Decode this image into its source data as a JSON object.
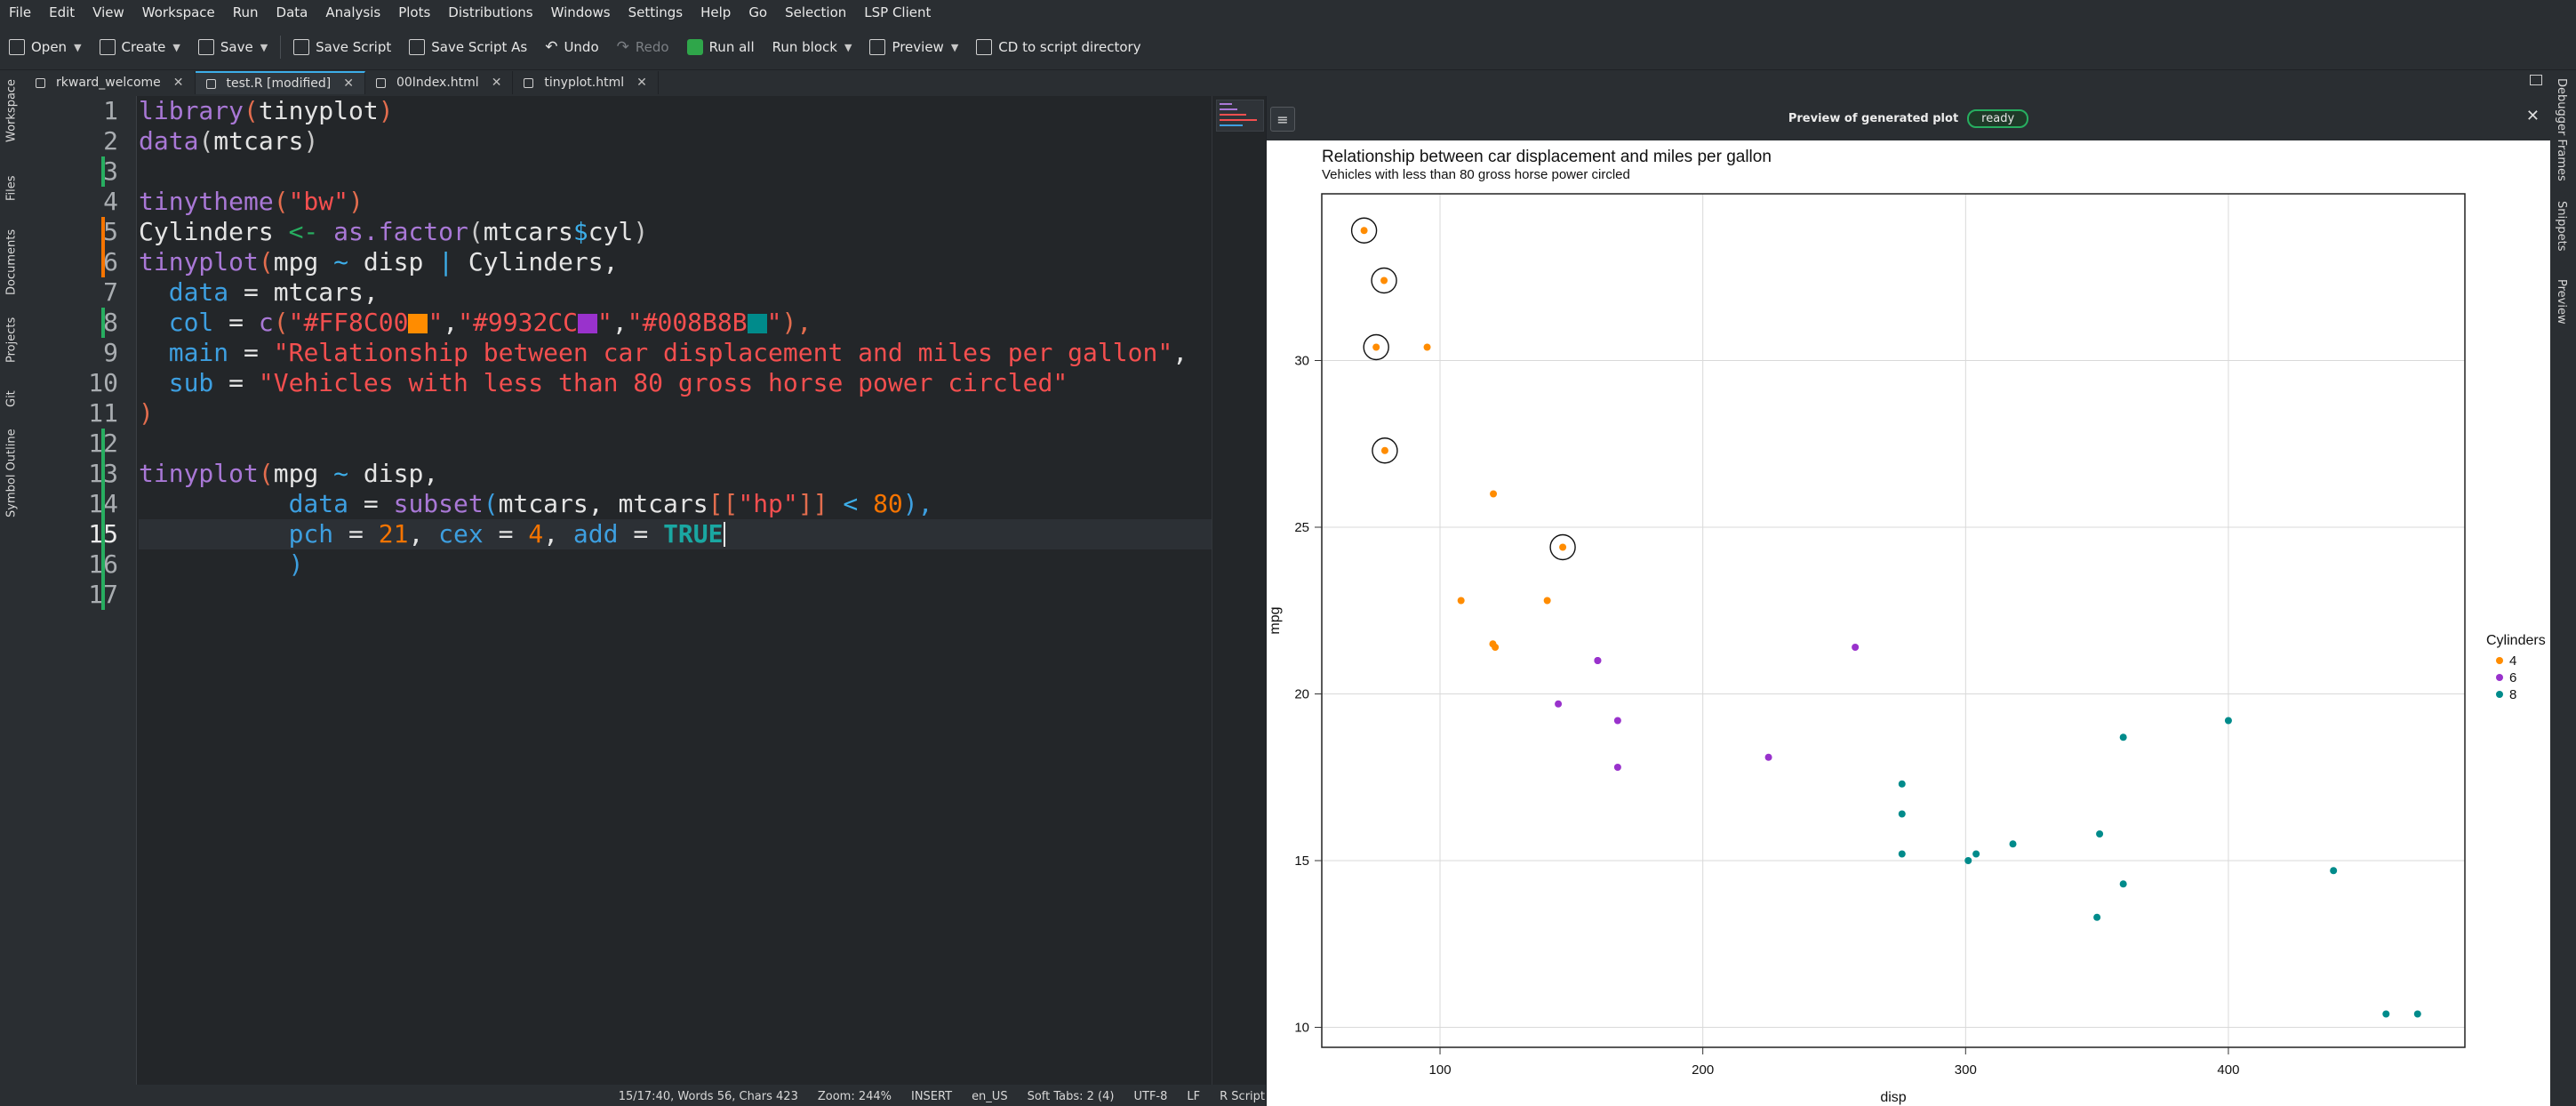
{
  "menubar": [
    "File",
    "Edit",
    "View",
    "Workspace",
    "Run",
    "Data",
    "Analysis",
    "Plots",
    "Distributions",
    "Windows",
    "Settings",
    "Help",
    "Go",
    "Selection",
    "LSP Client"
  ],
  "toolbar": {
    "open": "Open",
    "create": "Create",
    "save": "Save",
    "save_script": "Save Script",
    "save_script_as": "Save Script As",
    "undo": "Undo",
    "redo": "Redo",
    "run_all": "Run all",
    "run_block": "Run block",
    "preview": "Preview",
    "cd": "CD to script directory"
  },
  "tabs": [
    {
      "label": "rkward_welcome",
      "active": false
    },
    {
      "label": "test.R [modified]",
      "active": true
    },
    {
      "label": "00Index.html",
      "active": false
    },
    {
      "label": "tinyplot.html",
      "active": false
    }
  ],
  "left_panels": [
    "Workspace",
    "Files",
    "Documents",
    "Projects",
    "Git",
    "Symbol Outline"
  ],
  "right_panels": [
    "Debugger Frames",
    "Snippets",
    "Preview"
  ],
  "editor": {
    "current_line": 15,
    "lines": [
      "1",
      "2",
      "3",
      "4",
      "5",
      "6",
      "7",
      "8",
      "9",
      "10",
      "11",
      "12",
      "13",
      "14",
      "15",
      "16",
      "17"
    ],
    "code": {
      "l1": {
        "fn": "library",
        "p1": "(",
        "arg": "tinyplot",
        "p2": ")"
      },
      "l2": {
        "fn": "data",
        "p1": "(",
        "arg": "mtcars",
        "p2": ")"
      },
      "l4": {
        "fn": "tinytheme",
        "p1": "(",
        "str": "\"bw\"",
        "p2": ")"
      },
      "l5": {
        "var": "Cylinders ",
        "op": "<-",
        "sp": " ",
        "fn": "as.factor",
        "p1": "(",
        "arg": "mtcars",
        "op2": "$",
        "arg2": "cyl",
        "p2": ")"
      },
      "l6": {
        "fn": "tinyplot",
        "p1": "(",
        "a": "mpg ",
        "op": "~",
        "b": " disp ",
        "op2": "|",
        "c": " Cylinders,"
      },
      "l7": {
        "indent": "  ",
        "name": "data",
        "eq": " = ",
        "val": "mtcars,"
      },
      "l8": {
        "indent": "  ",
        "name": "col",
        "eq": " = ",
        "fn": "c",
        "p1": "(",
        "s1": "\"#FF8C00",
        "s1e": "\"",
        "c1": ",",
        "s2": "\"#9932CC",
        "s2e": "\"",
        "c2": ",",
        "s3": "\"#008B8B",
        "s3e": "\"",
        "p2": "),"
      },
      "l9": {
        "indent": "  ",
        "name": "main",
        "eq": " = ",
        "str": "\"Relationship between car displacement and miles per gallon\"",
        "tail": ","
      },
      "l10": {
        "indent": "  ",
        "name": "sub",
        "eq": " = ",
        "str": "\"Vehicles with less than 80 gross horse power circled\""
      },
      "l11": {
        "p": ")"
      },
      "l13": {
        "fn": "tinyplot",
        "p1": "(",
        "a": "mpg ",
        "op": "~",
        "b": " disp,"
      },
      "l14": {
        "indent": "          ",
        "name": "data",
        "eq": " = ",
        "fn": "subset",
        "p1": "(",
        "a": "mtcars, mtcars",
        "b1": "[[",
        "str": "\"hp\"",
        "b2": "]]",
        "op": " < ",
        "num": "80",
        "p2": "),"
      },
      "l15": {
        "indent": "          ",
        "n1": "pch",
        "eq1": " = ",
        "v1": "21",
        "c1": ", ",
        "n2": "cex",
        "eq2": " = ",
        "v2": "4",
        "c2": ", ",
        "n3": "add",
        "eq3": " = ",
        "v3": "TRUE"
      },
      "l16": {
        "indent": "          ",
        "p": ")"
      }
    }
  },
  "preview": {
    "title": "Preview of generated plot",
    "badge": "ready"
  },
  "status": [
    "15/17:40, Words 56, Chars 423",
    "Zoom: 244%",
    "INSERT",
    "en_US",
    "Soft Tabs: 2 (4)",
    "UTF-8",
    "LF",
    "R Script"
  ],
  "colors": {
    "cyl4": "#FF8C00",
    "cyl6": "#9932CC",
    "cyl8": "#008B8B"
  },
  "chart_data": {
    "type": "scatter",
    "title": "Relationship between car displacement and miles per gallon",
    "subtitle": "Vehicles with less than 80 gross horse power circled",
    "xlabel": "disp",
    "ylabel": "mpg",
    "xlim": [
      55,
      490
    ],
    "ylim": [
      9.4,
      35
    ],
    "xticks": [
      100,
      200,
      300,
      400
    ],
    "yticks": [
      10,
      15,
      20,
      25,
      30
    ],
    "grid": true,
    "legend": {
      "title": "Cylinders",
      "position": "right"
    },
    "series": [
      {
        "name": "4",
        "color": "#FF8C00",
        "points": [
          [
            108,
            22.8
          ],
          [
            146.7,
            24.4
          ],
          [
            140.8,
            22.8
          ],
          [
            78.7,
            32.4
          ],
          [
            75.7,
            30.4
          ],
          [
            71.1,
            33.9
          ],
          [
            120.1,
            21.5
          ],
          [
            79,
            27.3
          ],
          [
            120.3,
            26
          ],
          [
            95.1,
            30.4
          ],
          [
            121,
            21.4
          ]
        ]
      },
      {
        "name": "6",
        "color": "#9932CC",
        "points": [
          [
            160,
            21
          ],
          [
            160,
            21
          ],
          [
            258,
            21.4
          ],
          [
            225,
            18.1
          ],
          [
            167.6,
            19.2
          ],
          [
            167.6,
            17.8
          ],
          [
            145,
            19.7
          ]
        ]
      },
      {
        "name": "8",
        "color": "#008B8B",
        "points": [
          [
            360,
            18.7
          ],
          [
            360,
            14.3
          ],
          [
            275.8,
            16.4
          ],
          [
            275.8,
            17.3
          ],
          [
            275.8,
            15.2
          ],
          [
            472,
            10.4
          ],
          [
            460,
            10.4
          ],
          [
            440,
            14.7
          ],
          [
            318,
            15.5
          ],
          [
            304,
            15.2
          ],
          [
            350,
            13.3
          ],
          [
            400,
            19.2
          ],
          [
            351,
            15.8
          ],
          [
            301,
            15
          ]
        ]
      }
    ],
    "circled": [
      [
        78.7,
        32.4
      ],
      [
        75.7,
        30.4
      ],
      [
        71.1,
        33.9
      ],
      [
        79,
        27.3
      ],
      [
        146.7,
        24.4
      ]
    ]
  }
}
